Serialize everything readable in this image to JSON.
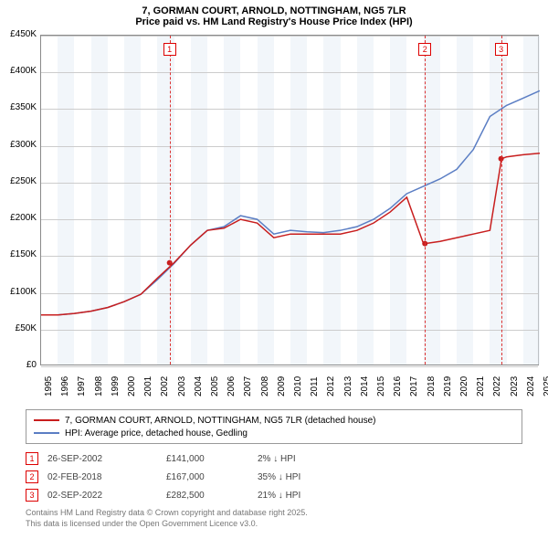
{
  "title_line1": "7, GORMAN COURT, ARNOLD, NOTTINGHAM, NG5 7LR",
  "title_line2": "Price paid vs. HM Land Registry's House Price Index (HPI)",
  "chart": {
    "type": "line",
    "x_years": [
      1995,
      1996,
      1997,
      1998,
      1999,
      2000,
      2001,
      2002,
      2003,
      2004,
      2005,
      2006,
      2007,
      2008,
      2009,
      2010,
      2011,
      2012,
      2013,
      2014,
      2015,
      2016,
      2017,
      2018,
      2019,
      2020,
      2021,
      2022,
      2023,
      2024,
      2025
    ],
    "y_min": 0,
    "y_max": 450000,
    "y_step": 50000,
    "y_labels": [
      "£0",
      "£50K",
      "£100K",
      "£150K",
      "£200K",
      "£250K",
      "£300K",
      "£350K",
      "£400K",
      "£450K"
    ],
    "grid_color": "#cccccc",
    "background_color": "#ffffff",
    "shade_color": "#e8eef6",
    "series": {
      "red": {
        "color": "#c81e1e",
        "width": 1.5,
        "points": [
          [
            1995,
            70000
          ],
          [
            1996,
            70000
          ],
          [
            1997,
            72000
          ],
          [
            1998,
            75000
          ],
          [
            1999,
            80000
          ],
          [
            2000,
            88000
          ],
          [
            2001,
            98000
          ],
          [
            2002,
            120000
          ],
          [
            2003,
            141000
          ],
          [
            2004,
            165000
          ],
          [
            2005,
            185000
          ],
          [
            2006,
            188000
          ],
          [
            2007,
            200000
          ],
          [
            2008,
            195000
          ],
          [
            2009,
            175000
          ],
          [
            2010,
            180000
          ],
          [
            2011,
            180000
          ],
          [
            2012,
            180000
          ],
          [
            2013,
            180000
          ],
          [
            2014,
            185000
          ],
          [
            2015,
            195000
          ],
          [
            2016,
            210000
          ],
          [
            2017,
            230000
          ],
          [
            2018,
            167000
          ],
          [
            2018.1,
            167000
          ],
          [
            2019,
            170000
          ],
          [
            2020,
            175000
          ],
          [
            2021,
            180000
          ],
          [
            2022,
            185000
          ],
          [
            2022.7,
            282500
          ],
          [
            2023,
            285000
          ],
          [
            2024,
            288000
          ],
          [
            2025,
            290000
          ]
        ]
      },
      "blue": {
        "color": "#5b7ec4",
        "width": 1.5,
        "points": [
          [
            1995,
            70000
          ],
          [
            1996,
            70000
          ],
          [
            1997,
            72000
          ],
          [
            1998,
            75000
          ],
          [
            1999,
            80000
          ],
          [
            2000,
            88000
          ],
          [
            2001,
            98000
          ],
          [
            2002,
            118000
          ],
          [
            2003,
            140000
          ],
          [
            2004,
            165000
          ],
          [
            2005,
            185000
          ],
          [
            2006,
            190000
          ],
          [
            2007,
            205000
          ],
          [
            2008,
            200000
          ],
          [
            2009,
            180000
          ],
          [
            2010,
            185000
          ],
          [
            2011,
            183000
          ],
          [
            2012,
            182000
          ],
          [
            2013,
            185000
          ],
          [
            2014,
            190000
          ],
          [
            2015,
            200000
          ],
          [
            2016,
            215000
          ],
          [
            2017,
            235000
          ],
          [
            2018,
            245000
          ],
          [
            2019,
            255000
          ],
          [
            2020,
            268000
          ],
          [
            2021,
            295000
          ],
          [
            2022,
            340000
          ],
          [
            2023,
            355000
          ],
          [
            2024,
            365000
          ],
          [
            2025,
            375000
          ]
        ]
      }
    },
    "markers": [
      {
        "n": "1",
        "year": 2002.73,
        "y": 141000
      },
      {
        "n": "2",
        "year": 2018.09,
        "y": 167000
      },
      {
        "n": "3",
        "year": 2022.67,
        "y": 282500
      }
    ],
    "shade_bands": [
      [
        1996,
        1997
      ],
      [
        1998,
        1999
      ],
      [
        2000,
        2001
      ],
      [
        2002,
        2003
      ],
      [
        2004,
        2005
      ],
      [
        2006,
        2007
      ],
      [
        2008,
        2009
      ],
      [
        2010,
        2011
      ],
      [
        2012,
        2013
      ],
      [
        2014,
        2015
      ],
      [
        2016,
        2017
      ],
      [
        2018,
        2019
      ],
      [
        2020,
        2021
      ],
      [
        2022,
        2023
      ],
      [
        2024,
        2025
      ]
    ]
  },
  "legend": {
    "red_label": "7, GORMAN COURT, ARNOLD, NOTTINGHAM, NG5 7LR (detached house)",
    "blue_label": "HPI: Average price, detached house, Gedling"
  },
  "marker_rows": [
    {
      "n": "1",
      "date": "26-SEP-2002",
      "price": "£141,000",
      "hpi": "2% ↓ HPI"
    },
    {
      "n": "2",
      "date": "02-FEB-2018",
      "price": "£167,000",
      "hpi": "35% ↓ HPI"
    },
    {
      "n": "3",
      "date": "02-SEP-2022",
      "price": "£282,500",
      "hpi": "21% ↓ HPI"
    }
  ],
  "footer_line1": "Contains HM Land Registry data © Crown copyright and database right 2025.",
  "footer_line2": "This data is licensed under the Open Government Licence v3.0."
}
